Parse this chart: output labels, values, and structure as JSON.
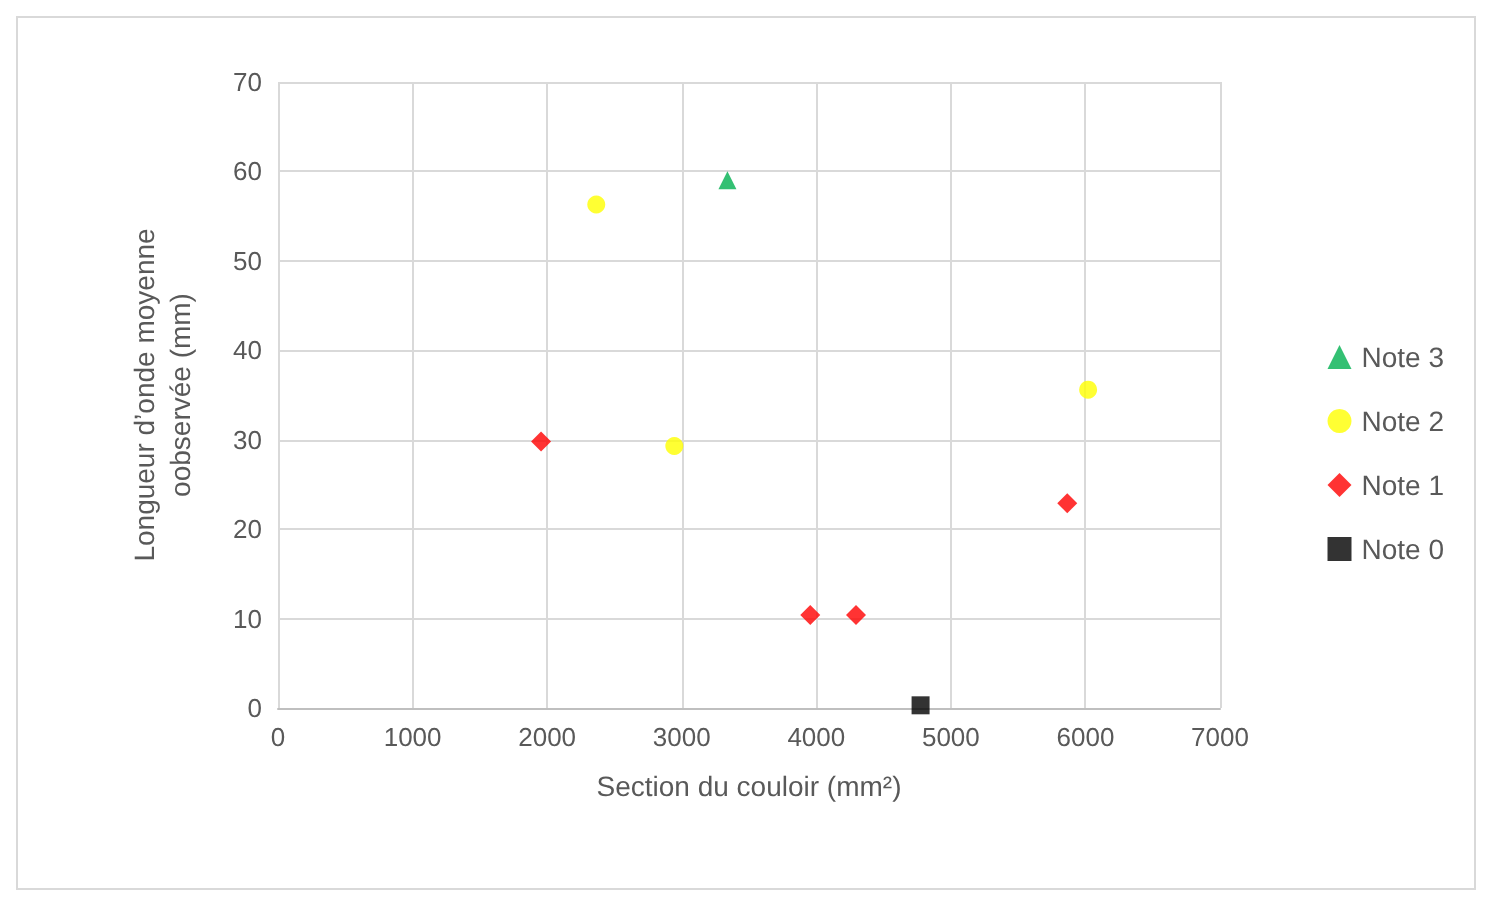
{
  "chart_data": {
    "type": "scatter",
    "xlabel": "Section du couloir (mm²)",
    "ylabel": "Longueur d’onde moyenne\noobservée (mm)",
    "xlim": [
      0,
      7000
    ],
    "xticks": [
      0,
      1000,
      2000,
      3000,
      4000,
      5000,
      6000,
      7000
    ],
    "ylim": [
      0,
      70
    ],
    "yticks": [
      0,
      10,
      20,
      30,
      40,
      50,
      60,
      70
    ],
    "grid": true,
    "legend": "right",
    "series": [
      {
        "name": "Note 3",
        "color": "#00b050",
        "marker": "triangle",
        "x": [
          3340
        ],
        "values": [
          59
        ]
      },
      {
        "name": "Note 2",
        "color": "#ffff00",
        "marker": "circle",
        "x": [
          2365,
          2945,
          6020
        ],
        "values": [
          56.3,
          29.3,
          35.6
        ]
      },
      {
        "name": "Note 1",
        "color": "#ff0000",
        "marker": "diamond",
        "x": [
          1955,
          3955,
          4295,
          5865
        ],
        "values": [
          29.8,
          10.4,
          10.4,
          22.9
        ]
      },
      {
        "name": "Note 0",
        "color": "#000000",
        "marker": "square",
        "x": [
          4775
        ],
        "values": [
          0.3
        ]
      }
    ]
  }
}
